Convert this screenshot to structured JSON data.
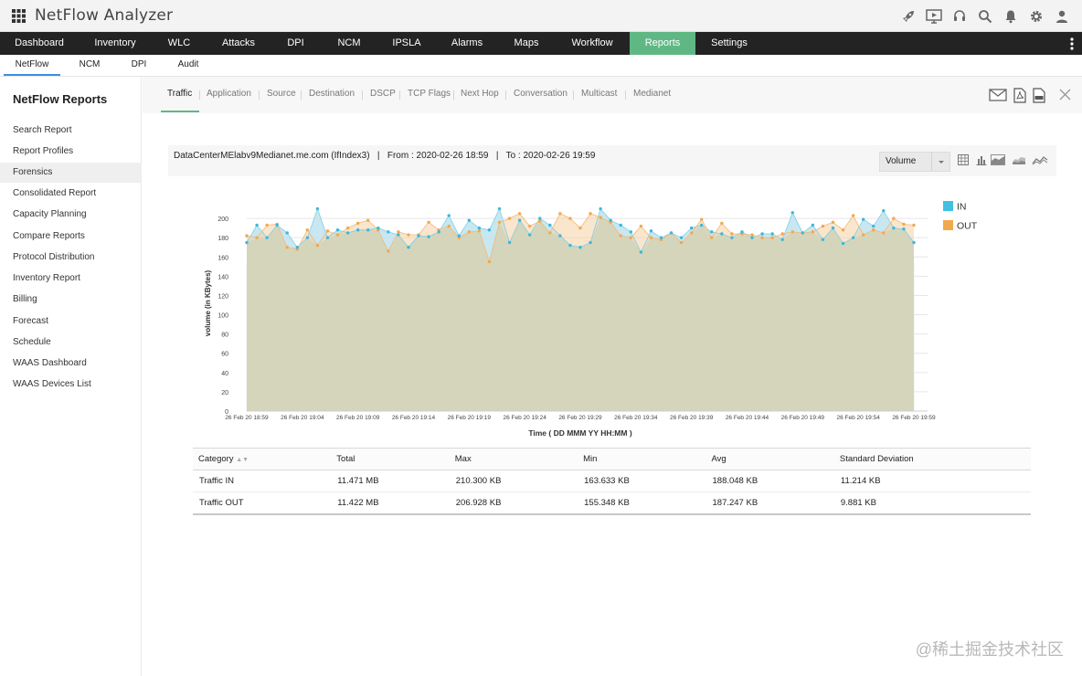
{
  "header": {
    "app_title": "NetFlow Analyzer",
    "icons": [
      "rocket-icon",
      "presentation-icon",
      "headset-icon",
      "search-icon",
      "bell-icon",
      "gear-icon",
      "user-icon"
    ]
  },
  "main_nav": {
    "items": [
      "Dashboard",
      "Inventory",
      "WLC",
      "Attacks",
      "DPI",
      "NCM",
      "IPSLA",
      "Alarms",
      "Maps",
      "Workflow",
      "Reports",
      "Settings"
    ],
    "active": "Reports",
    "active_color": "#5fb884"
  },
  "sub_nav": {
    "items": [
      "NetFlow",
      "NCM",
      "DPI",
      "Audit"
    ],
    "active": "NetFlow"
  },
  "sidebar": {
    "title": "NetFlow Reports",
    "items": [
      "Search Report",
      "Report Profiles",
      "Forensics",
      "Consolidated Report",
      "Capacity Planning",
      "Compare Reports",
      "Protocol Distribution",
      "Inventory Report",
      "Billing",
      "Forecast",
      "Schedule",
      "WAAS Dashboard",
      "WAAS Devices List"
    ],
    "active": "Forensics"
  },
  "report_tabs": {
    "items": [
      "Traffic",
      "Application",
      "Source",
      "Destination",
      "DSCP",
      "TCP Flags",
      "Next Hop",
      "Conversation",
      "Multicast",
      "Medianet"
    ],
    "active": "Traffic"
  },
  "info": {
    "device": "DataCenterMElabv9Medianet.me.com (IfIndex3)",
    "sep1": "|",
    "from": "From : 2020-02-26 18:59",
    "sep2": "|",
    "to": "To : 2020-02-26 19:59",
    "select_value": "Volume"
  },
  "chart_data": {
    "type": "area",
    "xlabel": "Time ( DD MMM YY HH:MM )",
    "ylabel": "volume (in KBytes)",
    "ylim": [
      0,
      220
    ],
    "yticks": [
      0,
      20,
      40,
      60,
      80,
      100,
      120,
      140,
      160,
      180,
      200
    ],
    "xtick_labels": [
      "26 Feb 20 18:59",
      "26 Feb 20 19:04",
      "26 Feb 20 19:09",
      "26 Feb 20 19:14",
      "26 Feb 20 19:19",
      "26 Feb 20 19:24",
      "26 Feb 20 19:29",
      "26 Feb 20 19:34",
      "26 Feb 20 19:39",
      "26 Feb 20 19:44",
      "26 Feb 20 19:49",
      "26 Feb 20 19:54",
      "26 Feb 20 19:59"
    ],
    "series": [
      {
        "name": "IN",
        "color": "#41c0e0",
        "values": [
          175,
          193,
          180,
          193,
          185,
          170,
          180,
          210,
          180,
          188,
          185,
          188,
          188,
          190,
          186,
          183,
          170,
          182,
          181,
          186,
          203,
          182,
          198,
          190,
          188,
          210,
          175,
          198,
          183,
          200,
          193,
          182,
          172,
          170,
          175,
          210,
          198,
          193,
          186,
          165,
          187,
          180,
          185,
          180,
          190,
          193,
          186,
          184,
          180,
          186,
          180,
          184,
          184,
          178,
          206,
          185,
          193,
          178,
          190,
          174,
          180,
          199,
          192,
          208,
          190,
          189,
          175
        ]
      },
      {
        "name": "OUT",
        "color": "#f1a94e",
        "values": [
          182,
          180,
          193,
          194,
          170,
          168,
          188,
          172,
          187,
          183,
          190,
          195,
          198,
          188,
          166,
          186,
          183,
          183,
          196,
          188,
          192,
          180,
          186,
          187,
          155,
          196,
          200,
          205,
          192,
          197,
          185,
          205,
          200,
          190,
          205,
          201,
          196,
          182,
          180,
          192,
          180,
          178,
          185,
          175,
          185,
          199,
          180,
          195,
          184,
          184,
          183,
          180,
          180,
          184,
          186,
          185,
          186,
          192,
          196,
          188,
          203,
          183,
          188,
          185,
          200,
          194,
          193
        ]
      }
    ],
    "legend": "top-right"
  },
  "stats_table": {
    "columns": [
      "Category",
      "Total",
      "Max",
      "Min",
      "Avg",
      "Standard Deviation"
    ],
    "rows": [
      [
        "Traffic IN",
        "11.471 MB",
        "210.300 KB",
        "163.633 KB",
        "188.048 KB",
        "11.214 KB"
      ],
      [
        "Traffic OUT",
        "11.422 MB",
        "206.928 KB",
        "155.348 KB",
        "187.247 KB",
        "9.881 KB"
      ]
    ]
  },
  "watermark": "@稀土掘金技术社区"
}
